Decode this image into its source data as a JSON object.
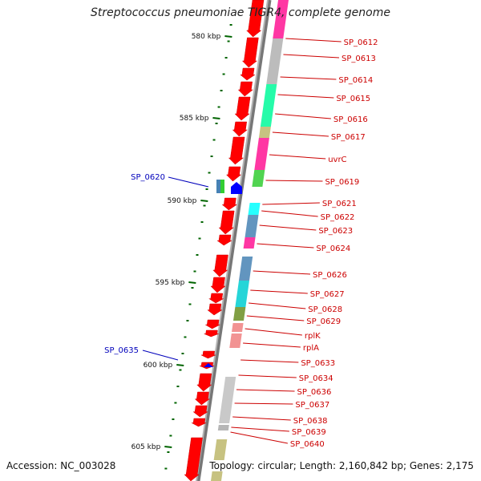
{
  "title": "Streptococcus pneumoniae TIGR4, complete genome",
  "accession": "Accession: NC_003028",
  "summary": "Topology: circular; Length: 2,160,842 bp; Genes: 2,175",
  "colors": {
    "backbone": "#8c8c8c",
    "forward_label": "#cc0000",
    "reverse_label": "#0000bb",
    "tick": "#006400"
  },
  "ticks": [
    {
      "label": "580 kbp"
    },
    {
      "label": "585 kbp"
    },
    {
      "label": "590 kbp"
    },
    {
      "label": "595 kbp"
    },
    {
      "label": "600 kbp"
    },
    {
      "label": "605 kbp"
    }
  ],
  "forward_genes": [
    {
      "label": "SP_0612",
      "color": "#ff1493"
    },
    {
      "label": "SP_0613",
      "color": "#b0b0b0"
    },
    {
      "label": "SP_0614",
      "color": "#b0b0b0"
    },
    {
      "label": "SP_0615",
      "color": "#00fa9a"
    },
    {
      "label": "SP_0616",
      "color": "#00fa9a"
    },
    {
      "label": "SP_0617",
      "color": "#bdb76b"
    },
    {
      "label": "uvrC",
      "color": "#ff1493"
    },
    {
      "label": "SP_0619",
      "color": "#32cd32"
    },
    {
      "label": "SP_0621",
      "color": "#00ffff"
    },
    {
      "label": "SP_0622",
      "color": "#4682b4"
    },
    {
      "label": "SP_0623",
      "color": "#4682b4"
    },
    {
      "label": "SP_0624",
      "color": "#ff1493"
    },
    {
      "label": "SP_0626",
      "color": "#4682b4"
    },
    {
      "label": "SP_0627",
      "color": "#00ced1"
    },
    {
      "label": "SP_0628",
      "color": "#6b8e23"
    },
    {
      "label": "SP_0629",
      "color": "#6b8e23"
    },
    {
      "label": "rplK",
      "color": "#f08080"
    },
    {
      "label": "rplA",
      "color": "#f08080"
    },
    {
      "label": "SP_0633",
      "color": "#ffffff"
    },
    {
      "label": "SP_0634",
      "color": "#ffffff"
    },
    {
      "label": "SP_0636",
      "color": "#c0c0c0"
    },
    {
      "label": "SP_0637",
      "color": "#c0c0c0"
    },
    {
      "label": "SP_0638",
      "color": "#c0c0c0"
    },
    {
      "label": "SP_0639",
      "color": "#a9a9a9"
    },
    {
      "label": "SP_0640",
      "color": "#bdb76b"
    }
  ],
  "reverse_genes": [
    {
      "label": "SP_0620",
      "color": "#4682b4"
    },
    {
      "label": "SP_0635",
      "color": "#0000ff"
    }
  ]
}
